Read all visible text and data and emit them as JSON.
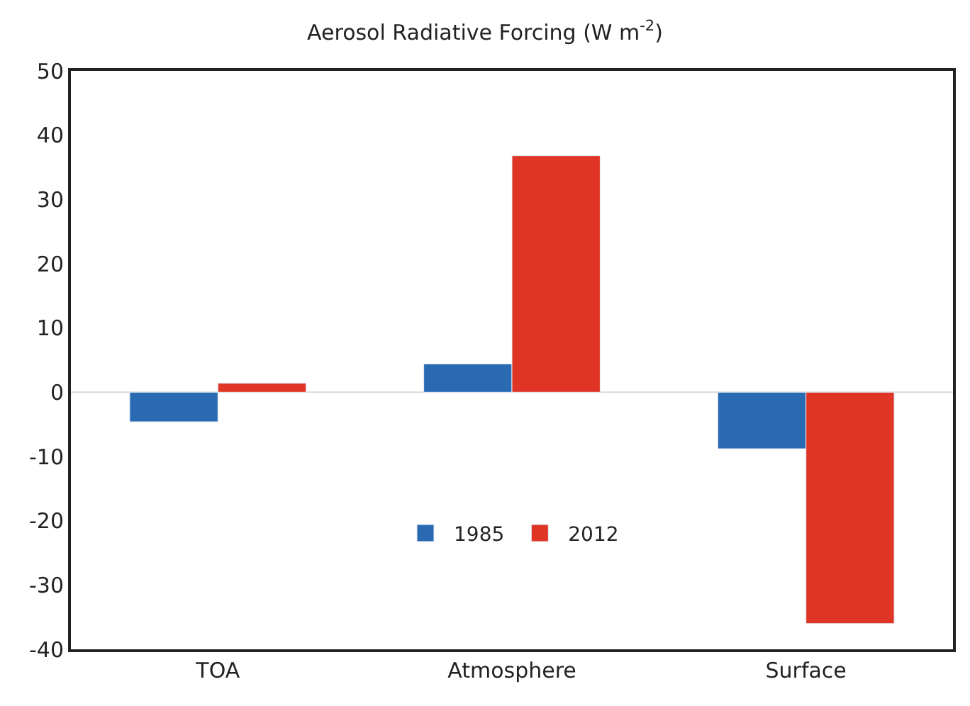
{
  "chart_data": {
    "type": "bar",
    "title": "Aerosol Radiative Forcing (W m$^{-2}$)",
    "categories": [
      "TOA",
      "Atmosphere",
      "Surface"
    ],
    "series": [
      {
        "name": "1985",
        "color": "#2a6ab3",
        "values": [
          -4.6,
          4.4,
          -8.8
        ]
      },
      {
        "name": "2012",
        "color": "#e03424",
        "values": [
          1.4,
          36.8,
          -36
        ]
      }
    ],
    "ylim": [
      -40,
      50
    ],
    "yticks": [
      -40,
      -30,
      -20,
      -10,
      0,
      10,
      20,
      30,
      40,
      50
    ],
    "ref_lines": [
      {
        "axis": "y",
        "value": 0,
        "color": "#d9d9d9"
      }
    ],
    "legend": "bottom"
  }
}
